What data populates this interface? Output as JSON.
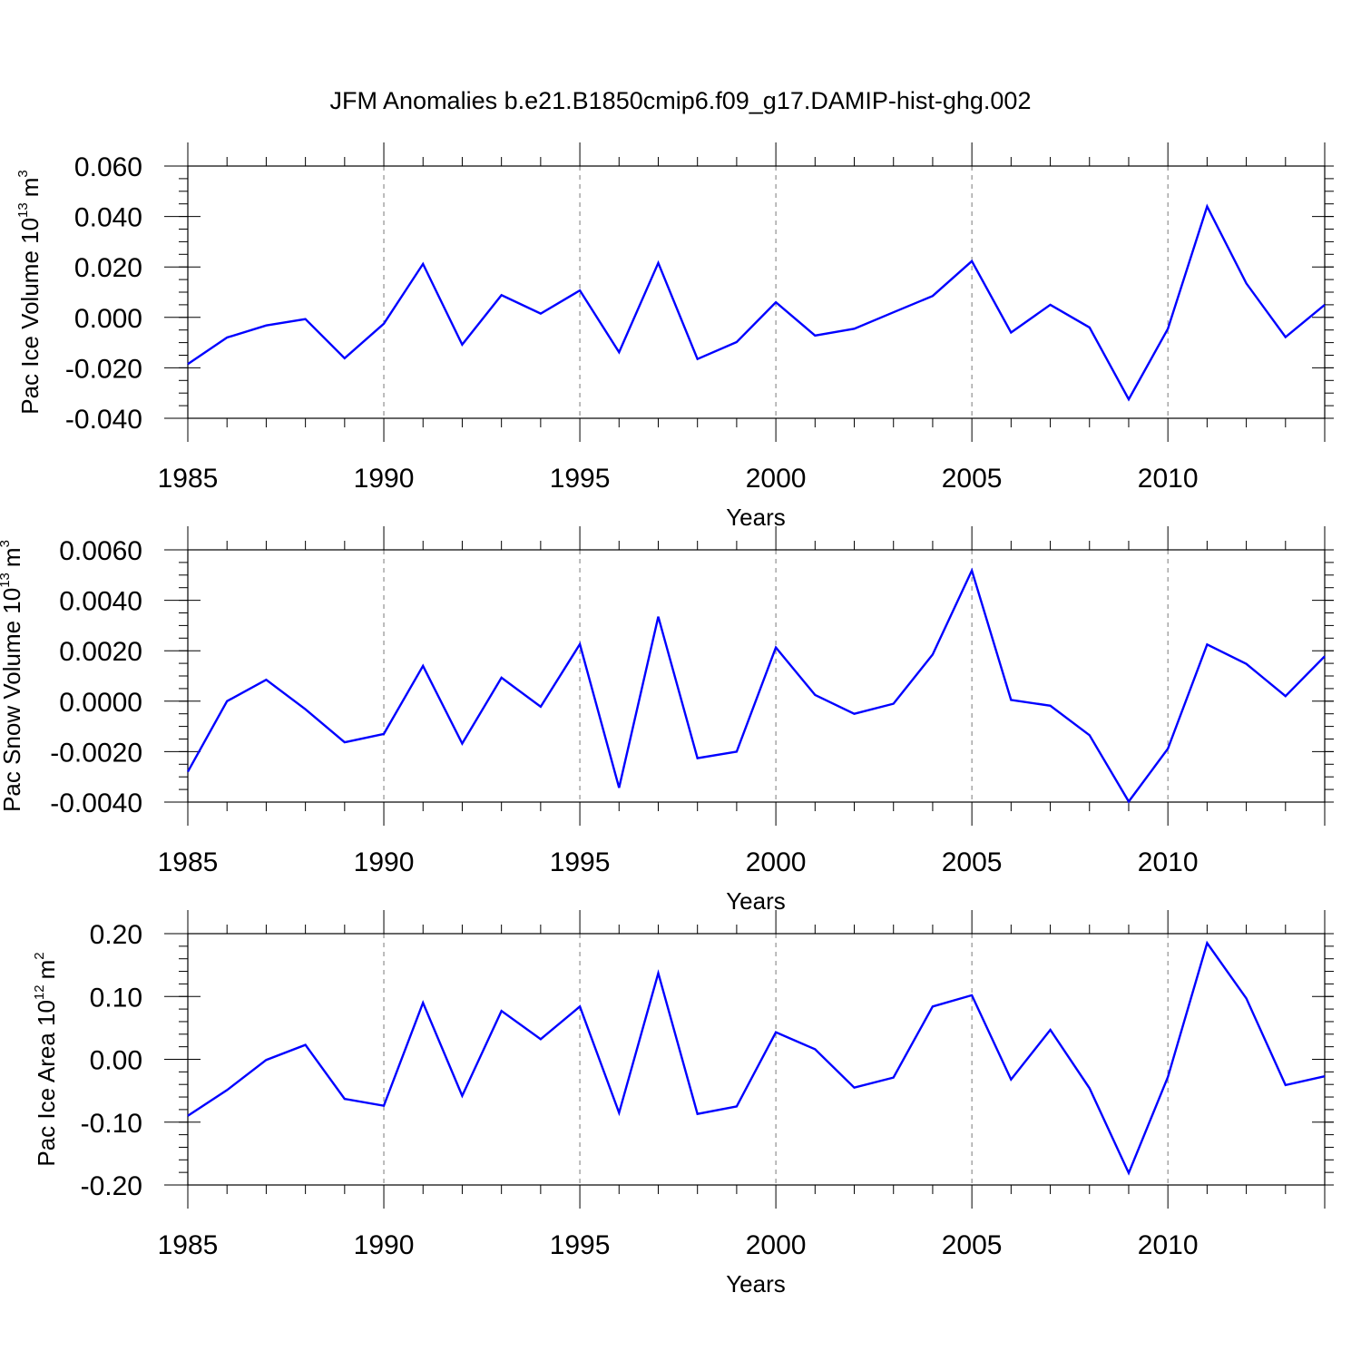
{
  "figure": {
    "title": "JFM Anomalies b.e21.B1850cmip6.f09_g17.DAMIP-hist-ghg.002"
  },
  "colors": {
    "series": "#0000ff",
    "grid": "#7a7a7a",
    "axis": "#000000"
  },
  "chart_data": [
    {
      "type": "line",
      "title": "JFM Anomalies b.e21.B1850cmip6.f09_g17.DAMIP-hist-ghg.002",
      "ylabel_main": "Pac Ice Volume 10",
      "ylabel_exp": "13",
      "ylabel_unit": "m",
      "ylabel_unit_exp": "3",
      "xlabel": "Years",
      "xlim": [
        1985,
        2014
      ],
      "ylim": [
        -0.04,
        0.06
      ],
      "yticks": [
        -0.04,
        -0.02,
        0.0,
        0.02,
        0.04,
        0.06
      ],
      "ytick_labels": [
        "-0.040",
        "-0.020",
        "0.000",
        "0.020",
        "0.040",
        "0.060"
      ],
      "yminor_step": 0.005,
      "xticks": [
        1985,
        1990,
        1995,
        2000,
        2005,
        2010
      ],
      "xtick_labels": [
        "1985",
        "1990",
        "1995",
        "2000",
        "2005",
        "2010"
      ],
      "grid_x": [
        1990,
        1995,
        2000,
        2005,
        2010
      ],
      "x": [
        1985,
        1986,
        1987,
        1988,
        1989,
        1990,
        1991,
        1992,
        1993,
        1994,
        1995,
        1996,
        1997,
        1998,
        1999,
        2000,
        2001,
        2002,
        2003,
        2004,
        2005,
        2006,
        2007,
        2008,
        2009,
        2010,
        2011,
        2012,
        2013,
        2014
      ],
      "series": [
        {
          "name": "Pac Ice Volume",
          "values": [
            -0.0185,
            -0.008,
            -0.0032,
            -0.0007,
            -0.0162,
            -0.0025,
            0.0212,
            -0.0108,
            0.0088,
            0.0015,
            0.0107,
            -0.0138,
            0.0216,
            -0.0165,
            -0.0098,
            0.006,
            -0.0072,
            -0.0045,
            0.002,
            0.0085,
            0.0223,
            -0.006,
            0.005,
            -0.004,
            -0.0325,
            -0.0045,
            0.044,
            0.0135,
            -0.0078,
            0.005
          ]
        }
      ]
    },
    {
      "type": "line",
      "ylabel_main": "Pac Snow Volume 10",
      "ylabel_exp": "13",
      "ylabel_unit": "m",
      "ylabel_unit_exp": "3",
      "xlabel": "Years",
      "xlim": [
        1985,
        2014
      ],
      "ylim": [
        -0.004,
        0.006
      ],
      "yticks": [
        -0.004,
        -0.002,
        0.0,
        0.002,
        0.004,
        0.006
      ],
      "ytick_labels": [
        "-0.0040",
        "-0.0020",
        "0.0000",
        "0.0020",
        "0.0040",
        "0.0060"
      ],
      "yminor_step": 0.0005,
      "xticks": [
        1985,
        1990,
        1995,
        2000,
        2005,
        2010
      ],
      "xtick_labels": [
        "1985",
        "1990",
        "1995",
        "2000",
        "2005",
        "2010"
      ],
      "grid_x": [
        1990,
        1995,
        2000,
        2005,
        2010
      ],
      "x": [
        1985,
        1986,
        1987,
        1988,
        1989,
        1990,
        1991,
        1992,
        1993,
        1994,
        1995,
        1996,
        1997,
        1998,
        1999,
        2000,
        2001,
        2002,
        2003,
        2004,
        2005,
        2006,
        2007,
        2008,
        2009,
        2010,
        2011,
        2012,
        2013,
        2014
      ],
      "series": [
        {
          "name": "Pac Snow Volume",
          "values": [
            -0.0028,
            0.0,
            0.00085,
            -0.00032,
            -0.00163,
            -0.0013,
            0.0014,
            -0.00168,
            0.00093,
            -0.00022,
            0.00226,
            -0.00343,
            0.00335,
            -0.00226,
            -0.002,
            0.00213,
            0.00025,
            -0.0005,
            -0.0001,
            0.00185,
            0.00518,
            5e-05,
            -0.00018,
            -0.00135,
            -0.00398,
            -0.00188,
            0.00225,
            0.00148,
            0.0002,
            0.00178
          ]
        }
      ]
    },
    {
      "type": "line",
      "ylabel_main": "Pac Ice Area 10",
      "ylabel_exp": "12",
      "ylabel_unit": "m",
      "ylabel_unit_exp": "2",
      "xlabel": "Years",
      "xlim": [
        1985,
        2014
      ],
      "ylim": [
        -0.2,
        0.2
      ],
      "yticks": [
        -0.2,
        -0.1,
        0.0,
        0.1,
        0.2
      ],
      "ytick_labels": [
        "-0.20",
        "-0.10",
        "0.00",
        "0.10",
        "0.20"
      ],
      "yminor_step": 0.02,
      "xticks": [
        1985,
        1990,
        1995,
        2000,
        2005,
        2010
      ],
      "xtick_labels": [
        "1985",
        "1990",
        "1995",
        "2000",
        "2005",
        "2010"
      ],
      "grid_x": [
        1990,
        1995,
        2000,
        2005,
        2010
      ],
      "x": [
        1985,
        1986,
        1987,
        1988,
        1989,
        1990,
        1991,
        1992,
        1993,
        1994,
        1995,
        1996,
        1997,
        1998,
        1999,
        2000,
        2001,
        2002,
        2003,
        2004,
        2005,
        2006,
        2007,
        2008,
        2009,
        2010,
        2011,
        2012,
        2013,
        2014
      ],
      "series": [
        {
          "name": "Pac Ice Area",
          "values": [
            -0.09,
            -0.049,
            -0.001,
            0.023,
            -0.063,
            -0.074,
            0.09,
            -0.058,
            0.077,
            0.032,
            0.084,
            -0.085,
            0.137,
            -0.087,
            -0.075,
            0.043,
            0.016,
            -0.045,
            -0.029,
            0.084,
            0.102,
            -0.032,
            0.047,
            -0.046,
            -0.181,
            -0.028,
            0.185,
            0.097,
            -0.041,
            -0.027
          ]
        }
      ]
    }
  ]
}
